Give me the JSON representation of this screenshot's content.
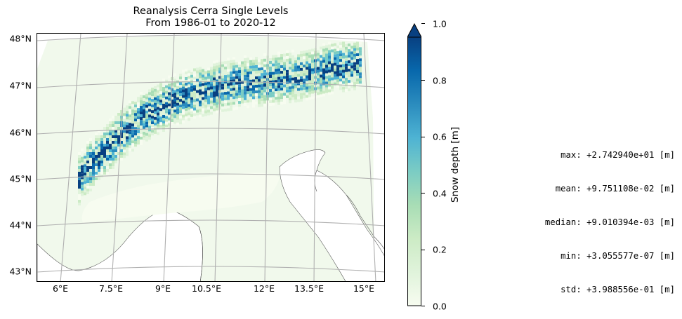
{
  "title": {
    "line1": "Reanalysis Cerra Single Levels",
    "line2": "From 1986-01 to 2020-12"
  },
  "map": {
    "projection": "Lambert conformal",
    "lat_labels": [
      "48°N",
      "47°N",
      "46°N",
      "45°N",
      "44°N",
      "43°N"
    ],
    "lon_labels": [
      "6°E",
      "7.5°E",
      "9°E",
      "10.5°E",
      "12°E",
      "13.5°E",
      "15°E"
    ],
    "gridline_color": "#b0b0b0",
    "coastline_color": "#555555",
    "variable": "Snow depth",
    "region": "Alps"
  },
  "colorbar": {
    "label": "Snow depth [m]",
    "ticks": [
      "0.0",
      "0.2",
      "0.4",
      "0.6",
      "0.8",
      "1.0"
    ],
    "min": 0.0,
    "max": 1.0,
    "extend": "max",
    "colormap": "GnBu",
    "colors": [
      "#f7fcf0",
      "#e0f3db",
      "#ccebc5",
      "#a8ddb5",
      "#7bccc4",
      "#4eb3d3",
      "#2b8cbe",
      "#0868ac",
      "#084081"
    ]
  },
  "stats": {
    "max": "max: +2.742940e+01 [m]",
    "mean": "mean: +9.751108e-02 [m]",
    "median": "median: +9.010394e-03 [m]",
    "min": "min: +3.055577e-07 [m]",
    "std": "std: +3.988556e-01 [m]"
  }
}
